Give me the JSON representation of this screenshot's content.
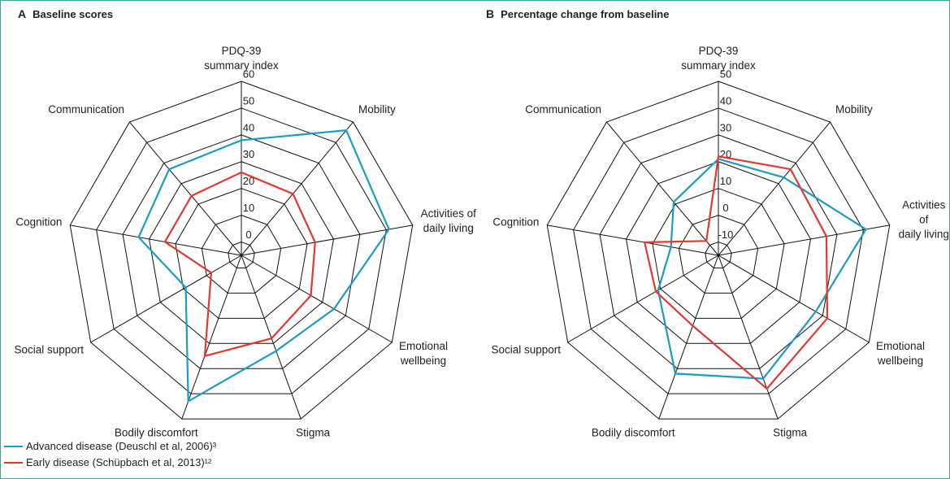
{
  "chart_data": [
    {
      "type": "radar",
      "label": "A",
      "title": "Baseline scores",
      "categories": [
        "PDQ-39\nsummary index",
        "Mobility",
        "Activities of\ndaily living",
        "Emotional\nwellbeing",
        "Stigma",
        "Bodily discomfort",
        "Social support",
        "Cognition",
        "Communication"
      ],
      "series": [
        {
          "name": "Advanced disease (Deuschl et al, 2006)³",
          "color": "#1a9cc4",
          "values": [
            38,
            56,
            51,
            35,
            33,
            53,
            19,
            34,
            37
          ]
        },
        {
          "name": "Early disease (Schüpbach et al, 2013)¹²",
          "color": "#e0392e",
          "values": [
            26,
            25,
            23,
            25,
            28,
            35,
            8,
            24,
            24
          ]
        }
      ],
      "ylim": [
        -5,
        60
      ],
      "yticks": [
        0,
        10,
        20,
        30,
        40,
        50,
        60
      ],
      "grid": true
    },
    {
      "type": "radar",
      "label": "B",
      "title": "Percentage change from baseline",
      "categories": [
        "PDQ-39\nsummary index",
        "Mobility",
        "Activities of\ndaily living",
        "Emotional\nwellbeing",
        "Stigma",
        "Bodily discomfort",
        "Social support",
        "Cognition",
        "Communication"
      ],
      "series": [
        {
          "name": "Advanced disease (Deuschl et al, 2006)³",
          "color": "#1a9cc4",
          "values": [
            21,
            23,
            41,
            27,
            34,
            32,
            11,
            3,
            11
          ]
        },
        {
          "name": "Early disease (Schüpbach et al, 2013)¹²",
          "color": "#e0392e",
          "values": [
            22,
            27,
            26,
            32,
            38,
            13,
            12,
            13,
            -8
          ]
        }
      ],
      "ylim": [
        -15,
        50
      ],
      "yticks": [
        -10,
        0,
        10,
        20,
        30,
        40,
        50
      ],
      "grid": true
    }
  ]
}
